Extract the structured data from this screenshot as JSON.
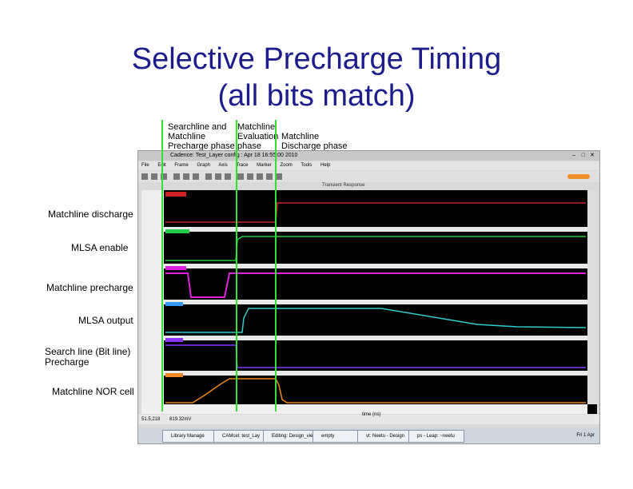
{
  "slide": {
    "title_line1": "Selective Precharge Timing",
    "title_line2": "(all bits match)",
    "phases": [
      "Searchline and\nMatchline\nPrecharge phase",
      "Matchline\nEvaluation\nphase",
      "Matchline\nDischarge phase"
    ],
    "signals": [
      "Matchline discharge",
      "MLSA enable",
      "Matchline precharge",
      "MLSA output",
      "Search line (Bit line)\nPrecharge",
      "Matchline NOR cell"
    ]
  },
  "window": {
    "title": "Cadence: Test_Layer config : Apr 18 16:55:00 2010",
    "menus": [
      "File",
      "Edit",
      "Frame",
      "Graph",
      "Axis",
      "Trace",
      "Marker",
      "Zoom",
      "Tools",
      "Help"
    ],
    "graph_title": "Transient Response",
    "status_left": "51.5,218",
    "status_right": "819.32mV",
    "x_axis_label": "time (ns)",
    "taskbar": [
      "Library Manage",
      "CAMcel: test_Lay",
      "Editing: Design_vie",
      "empty",
      "vt: Neetu - Design",
      "ps - Leap: ~neetu",
      "Fri 1 Apr"
    ]
  },
  "colors": {
    "title": "#1c1c8c",
    "phase_marker": "#33e033",
    "matchline_discharge": "#cc2222",
    "mlsa_enable": "#22cc44",
    "matchline_precharge": "#dd22dd",
    "mlsa_output": "#33cccc",
    "searchline_precharge": "#8833ff",
    "nor_cell": "#ee8822"
  }
}
